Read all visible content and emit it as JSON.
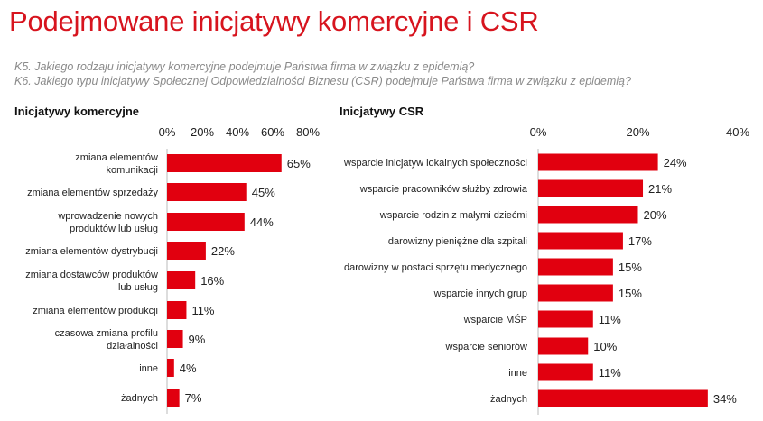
{
  "title": "Podejmowane inicjatywy komercyjne i CSR",
  "questions": {
    "k5": "K5. Jakiego rodzaju inicjatywy komercyjne podejmuje Państwa firma w związku z epidemią?",
    "k6": "K6. Jakiego typu inicjatywy Społecznej Odpowiedzialności Biznesu (CSR) podejmuje Państwa firma w związku z epidemią?"
  },
  "colors": {
    "accent": "#d7141e",
    "bar": "#e1000f",
    "grid": "#cfcfcf"
  },
  "chart_data": [
    {
      "type": "bar",
      "orientation": "horizontal",
      "title": "Inicjatywy komercyjne",
      "categories": [
        [
          "zmiana elementów",
          "komunikacji"
        ],
        [
          "zmiana elementów sprzedaży"
        ],
        [
          "wprowadzenie nowych",
          "produktów lub usług"
        ],
        [
          "zmiana elementów dystrybucji"
        ],
        [
          "zmiana dostawców produktów",
          "lub usług"
        ],
        [
          "zmiana elementów produkcji"
        ],
        [
          "czasowa zmiana profilu",
          "działalności"
        ],
        [
          "inne"
        ],
        [
          "żadnych"
        ]
      ],
      "values": [
        65,
        45,
        44,
        22,
        16,
        11,
        9,
        4,
        7
      ],
      "value_labels": [
        "65%",
        "45%",
        "44%",
        "22%",
        "16%",
        "11%",
        "9%",
        "4%",
        "7%"
      ],
      "xlim": [
        0,
        80
      ],
      "xticks": [
        "0%",
        "20%",
        "40%",
        "60%",
        "80%"
      ]
    },
    {
      "type": "bar",
      "orientation": "horizontal",
      "title": "Inicjatywy CSR",
      "categories": [
        [
          "wsparcie inicjatyw lokalnych społeczności"
        ],
        [
          "wsparcie pracowników służby zdrowia"
        ],
        [
          "wsparcie rodzin z małymi dziećmi"
        ],
        [
          "darowizny pieniężne dla szpitali"
        ],
        [
          "darowizny w postaci sprzętu medycznego"
        ],
        [
          "wsparcie innych grup"
        ],
        [
          "wsparcie MŚP"
        ],
        [
          "wsparcie seniorów"
        ],
        [
          "inne"
        ],
        [
          "żadnych"
        ]
      ],
      "values": [
        24,
        21,
        20,
        17,
        15,
        15,
        11,
        10,
        11,
        34
      ],
      "value_labels": [
        "24%",
        "21%",
        "20%",
        "17%",
        "15%",
        "15%",
        "11%",
        "10%",
        "11%",
        "34%"
      ],
      "xlim": [
        0,
        40
      ],
      "xticks": [
        "0%",
        "20%",
        "40%"
      ]
    }
  ]
}
